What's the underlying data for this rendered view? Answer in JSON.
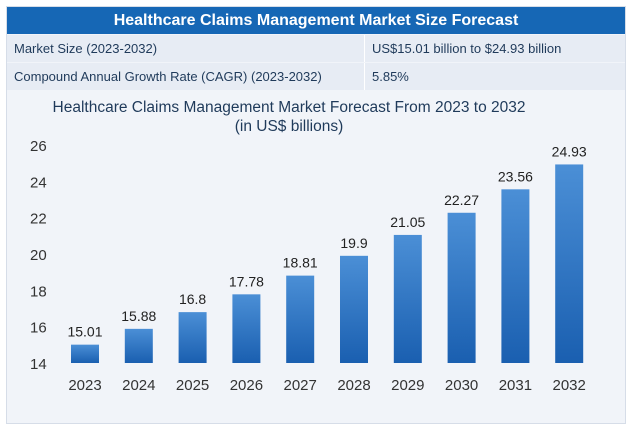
{
  "header": {
    "title": "Healthcare Claims Management Market Size Forecast"
  },
  "info_rows": [
    {
      "label": "Market Size (2023-2032)",
      "value": "US$15.01 billion to $24.93 billion"
    },
    {
      "label": "Compound Annual Growth Rate (CAGR) (2023-2032)",
      "value": "5.85%"
    }
  ],
  "colors": {
    "header_bg": "#1667b5",
    "bar_top": "#4b8fd6",
    "bar_bottom": "#1a5fb0"
  },
  "chart_data": {
    "type": "bar",
    "title": "Healthcare Claims Management Market Forecast From 2023 to 2032",
    "subtitle": "(in US$ billions)",
    "xlabel": "",
    "ylabel": "",
    "categories": [
      "2023",
      "2024",
      "2025",
      "2026",
      "2027",
      "2028",
      "2029",
      "2030",
      "2031",
      "2032"
    ],
    "values": [
      15.01,
      15.88,
      16.8,
      17.78,
      18.81,
      19.9,
      21.05,
      22.27,
      23.56,
      24.93
    ],
    "value_labels": [
      "15.01",
      "15.88",
      "16.8",
      "17.78",
      "18.81",
      "19.9",
      "21.05",
      "22.27",
      "23.56",
      "24.93"
    ],
    "ylim": [
      14,
      26
    ],
    "yticks": [
      14,
      16,
      18,
      20,
      22,
      24,
      26
    ],
    "grid": false,
    "legend": "none"
  }
}
